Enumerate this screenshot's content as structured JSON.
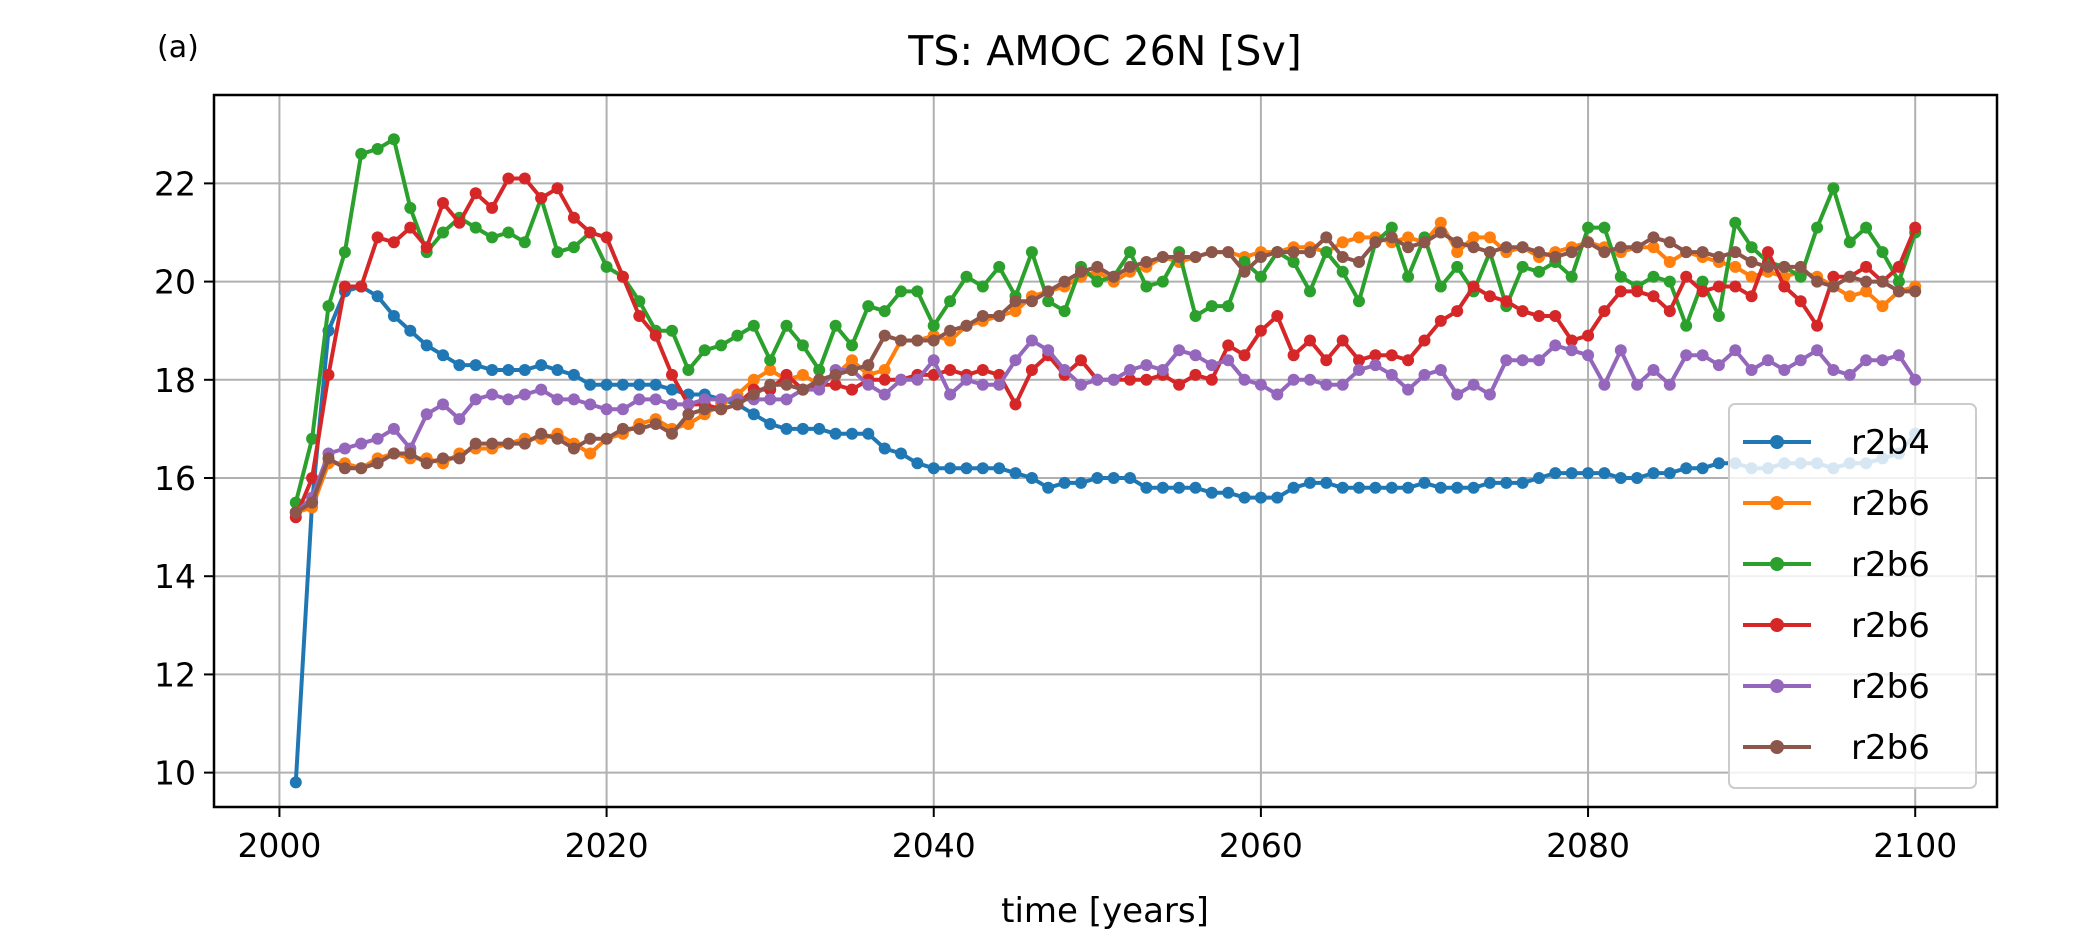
{
  "chart_data": {
    "type": "line",
    "panel_label": "(a)",
    "title": "TS: AMOC 26N [Sv]",
    "xlabel": "time [years]",
    "ylabel": "",
    "xlim": [
      1996,
      2105
    ],
    "ylim": [
      9.3,
      23.8
    ],
    "xticks": [
      2000,
      2020,
      2040,
      2060,
      2080,
      2100
    ],
    "yticks": [
      10,
      12,
      14,
      16,
      18,
      20,
      22
    ],
    "grid": true,
    "legend_position": "lower-right",
    "x_start": 2001,
    "series": [
      {
        "name": "r2b4",
        "color": "#1f77b4",
        "values": [
          9.8,
          15.5,
          19.0,
          19.8,
          19.9,
          19.7,
          19.3,
          19.0,
          18.7,
          18.5,
          18.3,
          18.3,
          18.2,
          18.2,
          18.2,
          18.3,
          18.2,
          18.1,
          17.9,
          17.9,
          17.9,
          17.9,
          17.9,
          17.8,
          17.7,
          17.7,
          17.6,
          17.5,
          17.3,
          17.1,
          17.0,
          17.0,
          17.0,
          16.9,
          16.9,
          16.9,
          16.6,
          16.5,
          16.3,
          16.2,
          16.2,
          16.2,
          16.2,
          16.2,
          16.1,
          16.0,
          15.8,
          15.9,
          15.9,
          16.0,
          16.0,
          16.0,
          15.8,
          15.8,
          15.8,
          15.8,
          15.7,
          15.7,
          15.6,
          15.6,
          15.6,
          15.8,
          15.9,
          15.9,
          15.8,
          15.8,
          15.8,
          15.8,
          15.8,
          15.9,
          15.8,
          15.8,
          15.8,
          15.9,
          15.9,
          15.9,
          16.0,
          16.1,
          16.1,
          16.1,
          16.1,
          16.0,
          16.0,
          16.1,
          16.1,
          16.2,
          16.2,
          16.3,
          16.3,
          16.2,
          16.2,
          16.3,
          16.3,
          16.3,
          16.2,
          16.3,
          16.3,
          16.4,
          16.5,
          16.9
        ]
      },
      {
        "name": "r2b6",
        "color": "#ff7f0e",
        "values": [
          15.3,
          15.4,
          16.3,
          16.3,
          16.2,
          16.4,
          16.5,
          16.4,
          16.4,
          16.3,
          16.5,
          16.6,
          16.6,
          16.7,
          16.8,
          16.8,
          16.9,
          16.7,
          16.5,
          16.8,
          16.9,
          17.1,
          17.2,
          17.0,
          17.1,
          17.3,
          17.5,
          17.7,
          18.0,
          18.2,
          18.0,
          18.1,
          17.9,
          18.1,
          18.4,
          18.1,
          18.2,
          18.8,
          18.8,
          18.9,
          18.8,
          19.1,
          19.2,
          19.3,
          19.4,
          19.7,
          19.8,
          19.9,
          20.1,
          20.2,
          20.0,
          20.2,
          20.3,
          20.5,
          20.4,
          20.5,
          20.6,
          20.6,
          20.5,
          20.6,
          20.6,
          20.7,
          20.7,
          20.6,
          20.8,
          20.9,
          20.9,
          20.8,
          20.9,
          20.8,
          21.2,
          20.6,
          20.9,
          20.9,
          20.6,
          20.7,
          20.5,
          20.6,
          20.7,
          20.8,
          20.7,
          20.6,
          20.7,
          20.7,
          20.4,
          20.6,
          20.5,
          20.4,
          20.3,
          20.1,
          20.2,
          20.1,
          20.2,
          20.1,
          19.9,
          19.7,
          19.8,
          19.5,
          19.8,
          19.9
        ]
      },
      {
        "name": "r2b6",
        "color": "#2ca02c",
        "values": [
          15.5,
          16.8,
          19.5,
          20.6,
          22.6,
          22.7,
          22.9,
          21.5,
          20.6,
          21.0,
          21.3,
          21.1,
          20.9,
          21.0,
          20.8,
          21.7,
          20.6,
          20.7,
          21.0,
          20.3,
          20.1,
          19.6,
          19.0,
          19.0,
          18.2,
          18.6,
          18.7,
          18.9,
          19.1,
          18.4,
          19.1,
          18.7,
          18.2,
          19.1,
          18.7,
          19.5,
          19.4,
          19.8,
          19.8,
          19.1,
          19.6,
          20.1,
          19.9,
          20.3,
          19.7,
          20.6,
          19.6,
          19.4,
          20.3,
          20.0,
          20.1,
          20.6,
          19.9,
          20.0,
          20.6,
          19.3,
          19.5,
          19.5,
          20.4,
          20.1,
          20.6,
          20.4,
          19.8,
          20.6,
          20.2,
          19.6,
          20.8,
          21.1,
          20.1,
          20.9,
          19.9,
          20.3,
          19.8,
          20.6,
          19.5,
          20.3,
          20.2,
          20.4,
          20.1,
          21.1,
          21.1,
          20.1,
          19.9,
          20.1,
          20.0,
          19.1,
          20.0,
          19.3,
          21.2,
          20.7,
          20.4,
          20.3,
          20.1,
          21.1,
          21.9,
          20.8,
          21.1,
          20.6,
          20.0,
          21.0
        ]
      },
      {
        "name": "r2b6",
        "color": "#d62728",
        "values": [
          15.2,
          16.0,
          18.1,
          19.9,
          19.9,
          20.9,
          20.8,
          21.1,
          20.7,
          21.6,
          21.2,
          21.8,
          21.5,
          22.1,
          22.1,
          21.7,
          21.9,
          21.3,
          21.0,
          20.9,
          20.1,
          19.3,
          18.9,
          18.1,
          17.5,
          17.5,
          17.4,
          17.5,
          17.8,
          17.8,
          18.1,
          17.8,
          17.9,
          17.9,
          17.8,
          18.0,
          18.0,
          18.0,
          18.1,
          18.1,
          18.2,
          18.1,
          18.2,
          18.1,
          17.5,
          18.2,
          18.5,
          18.1,
          18.4,
          18.0,
          18.0,
          18.0,
          18.0,
          18.1,
          17.9,
          18.1,
          18.0,
          18.7,
          18.5,
          19.0,
          19.3,
          18.5,
          18.8,
          18.4,
          18.8,
          18.4,
          18.5,
          18.5,
          18.4,
          18.8,
          19.2,
          19.4,
          19.9,
          19.7,
          19.6,
          19.4,
          19.3,
          19.3,
          18.8,
          18.9,
          19.4,
          19.8,
          19.8,
          19.7,
          19.4,
          20.1,
          19.8,
          19.9,
          19.9,
          19.7,
          20.6,
          19.9,
          19.6,
          19.1,
          20.1,
          20.1,
          20.3,
          20.0,
          20.3,
          21.1
        ]
      },
      {
        "name": "r2b6",
        "color": "#9467bd",
        "values": [
          15.3,
          15.6,
          16.5,
          16.6,
          16.7,
          16.8,
          17.0,
          16.6,
          17.3,
          17.5,
          17.2,
          17.6,
          17.7,
          17.6,
          17.7,
          17.8,
          17.6,
          17.6,
          17.5,
          17.4,
          17.4,
          17.6,
          17.6,
          17.5,
          17.5,
          17.6,
          17.6,
          17.6,
          17.6,
          17.6,
          17.6,
          17.8,
          17.8,
          18.2,
          18.2,
          17.9,
          17.7,
          18.0,
          18.0,
          18.4,
          17.7,
          18.0,
          17.9,
          17.9,
          18.4,
          18.8,
          18.6,
          18.2,
          17.9,
          18.0,
          18.0,
          18.2,
          18.3,
          18.2,
          18.6,
          18.5,
          18.3,
          18.4,
          18.0,
          17.9,
          17.7,
          18.0,
          18.0,
          17.9,
          17.9,
          18.2,
          18.3,
          18.1,
          17.8,
          18.1,
          18.2,
          17.7,
          17.9,
          17.7,
          18.4,
          18.4,
          18.4,
          18.7,
          18.6,
          18.5,
          17.9,
          18.6,
          17.9,
          18.2,
          17.9,
          18.5,
          18.5,
          18.3,
          18.6,
          18.2,
          18.4,
          18.2,
          18.4,
          18.6,
          18.2,
          18.1,
          18.4,
          18.4,
          18.5,
          18.0
        ]
      },
      {
        "name": "r2b6",
        "color": "#8c564b",
        "values": [
          15.3,
          15.5,
          16.4,
          16.2,
          16.2,
          16.3,
          16.5,
          16.5,
          16.3,
          16.4,
          16.4,
          16.7,
          16.7,
          16.7,
          16.7,
          16.9,
          16.8,
          16.6,
          16.8,
          16.8,
          17.0,
          17.0,
          17.1,
          16.9,
          17.3,
          17.4,
          17.4,
          17.5,
          17.7,
          17.9,
          17.9,
          17.8,
          18.0,
          18.1,
          18.2,
          18.3,
          18.9,
          18.8,
          18.8,
          18.8,
          19.0,
          19.1,
          19.3,
          19.3,
          19.6,
          19.6,
          19.8,
          20.0,
          20.2,
          20.3,
          20.1,
          20.3,
          20.4,
          20.5,
          20.5,
          20.5,
          20.6,
          20.6,
          20.2,
          20.5,
          20.6,
          20.6,
          20.6,
          20.9,
          20.5,
          20.4,
          20.8,
          20.9,
          20.7,
          20.8,
          21.0,
          20.8,
          20.7,
          20.6,
          20.7,
          20.7,
          20.6,
          20.5,
          20.6,
          20.8,
          20.6,
          20.7,
          20.7,
          20.9,
          20.8,
          20.6,
          20.6,
          20.5,
          20.6,
          20.4,
          20.3,
          20.3,
          20.3,
          20.0,
          19.9,
          20.1,
          20.0,
          20.0,
          19.8,
          19.8
        ]
      }
    ]
  }
}
